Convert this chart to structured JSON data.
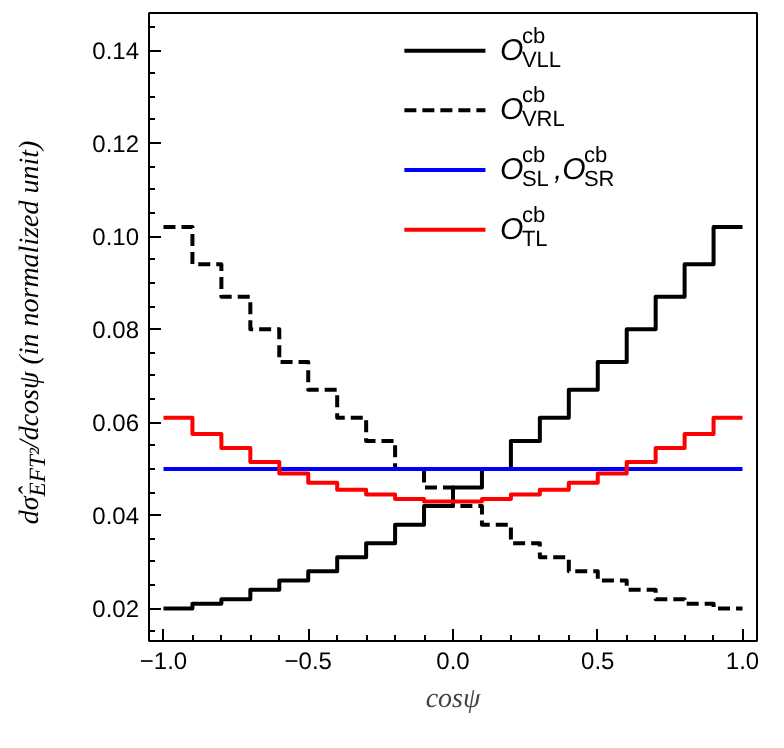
{
  "chart_data": {
    "type": "step",
    "xlabel": "cosψ",
    "ylabel": "dσ̂$_{EFT²}$/dcosψ (in normalized unit)",
    "x": [
      -1.0,
      -0.9,
      -0.8,
      -0.7,
      -0.6,
      -0.5,
      -0.4,
      -0.3,
      -0.2,
      -0.1,
      0.0,
      0.1,
      0.2,
      0.3,
      0.4,
      0.5,
      0.6,
      0.7,
      0.8,
      0.9,
      1.0
    ],
    "series": [
      {
        "name": "O$^{cb}$$_{VLL}$",
        "color": "#000000",
        "line_style": "solid",
        "values": [
          0.02,
          0.021,
          0.022,
          0.024,
          0.026,
          0.028,
          0.031,
          0.034,
          0.038,
          0.042,
          0.046,
          0.05,
          0.056,
          0.061,
          0.067,
          0.073,
          0.08,
          0.087,
          0.094,
          0.102,
          0.102
        ]
      },
      {
        "name": "O$^{cb}$$_{VRL}$",
        "color": "#000000",
        "line_style": "dashed",
        "values": [
          0.102,
          0.094,
          0.087,
          0.08,
          0.073,
          0.067,
          0.061,
          0.056,
          0.05,
          0.046,
          0.042,
          0.038,
          0.034,
          0.031,
          0.028,
          0.026,
          0.024,
          0.022,
          0.021,
          0.02,
          0.02
        ]
      },
      {
        "name": "O$^{cb}$$_{SL}$,O$^{cb}$$_{SR}$",
        "color": "#0000ff",
        "line_style": "solid",
        "values": [
          0.05,
          0.05,
          0.05,
          0.05,
          0.05,
          0.05,
          0.05,
          0.05,
          0.05,
          0.05,
          0.05,
          0.05,
          0.05,
          0.05,
          0.05,
          0.05,
          0.05,
          0.05,
          0.05,
          0.05,
          0.05
        ]
      },
      {
        "name": "O$^{cb}$$_{TL}$",
        "color": "#ff0000",
        "line_style": "solid",
        "values": [
          0.061,
          0.0575,
          0.0545,
          0.0515,
          0.049,
          0.047,
          0.0455,
          0.0445,
          0.0435,
          0.043,
          0.043,
          0.0435,
          0.0445,
          0.0455,
          0.047,
          0.049,
          0.0515,
          0.0545,
          0.0575,
          0.061,
          0.061
        ]
      }
    ],
    "xlim": [
      -1.05,
      1.05
    ],
    "ylim": [
      0.013,
      0.148
    ],
    "xticks": [
      {
        "value": -1.0,
        "label": "−1.0"
      },
      {
        "value": -0.5,
        "label": "−0.5"
      },
      {
        "value": 0.0,
        "label": "0.0"
      },
      {
        "value": 0.5,
        "label": "0.5"
      },
      {
        "value": 1.0,
        "label": "1.0"
      }
    ],
    "yticks": [
      {
        "value": 0.02,
        "label": "0.02"
      },
      {
        "value": 0.04,
        "label": "0.04"
      },
      {
        "value": 0.06,
        "label": "0.06"
      },
      {
        "value": 0.08,
        "label": "0.08"
      },
      {
        "value": 0.1,
        "label": "0.10"
      },
      {
        "value": 0.12,
        "label": "0.12"
      },
      {
        "value": 0.14,
        "label": "0.14"
      }
    ],
    "grid": false,
    "legend": "top right"
  }
}
